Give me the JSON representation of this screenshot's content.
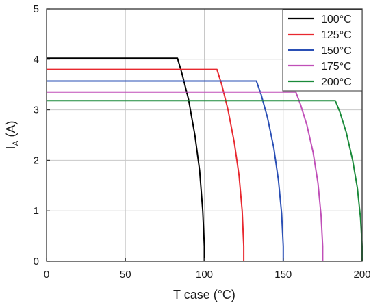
{
  "chart_data": {
    "type": "line",
    "title": "",
    "xlabel": "T case (°C)",
    "ylabel": {
      "main": "I",
      "sub": "A",
      "suffix": " (A)"
    },
    "xlim": [
      0,
      200
    ],
    "ylim": [
      0,
      5
    ],
    "x_ticks": [
      "0",
      "50",
      "100",
      "150",
      "200"
    ],
    "y_ticks": [
      "0",
      "1",
      "2",
      "3",
      "4",
      "5"
    ],
    "grid": true,
    "legend_position": "top-right",
    "series": [
      {
        "name": "100°C",
        "color": "#000000",
        "x": [
          0,
          83,
          86,
          90,
          94,
          97,
          99,
          100,
          100
        ],
        "y": [
          4.02,
          4.02,
          3.7,
          3.2,
          2.5,
          1.8,
          1.0,
          0.3,
          0
        ]
      },
      {
        "name": "125°C",
        "color": "#e8282f",
        "x": [
          0,
          108,
          111,
          115,
          119,
          122,
          124,
          125,
          125
        ],
        "y": [
          3.8,
          3.8,
          3.5,
          3.0,
          2.35,
          1.7,
          1.0,
          0.3,
          0
        ]
      },
      {
        "name": "150°C",
        "color": "#2a4fb5",
        "x": [
          0,
          133,
          136,
          140,
          144,
          147,
          149,
          150,
          150
        ],
        "y": [
          3.57,
          3.57,
          3.3,
          2.85,
          2.25,
          1.6,
          0.95,
          0.3,
          0
        ]
      },
      {
        "name": "175°C",
        "color": "#c04fb8",
        "x": [
          0,
          158,
          161,
          165,
          169,
          172,
          174,
          175,
          175
        ],
        "y": [
          3.35,
          3.35,
          3.1,
          2.7,
          2.15,
          1.55,
          0.9,
          0.3,
          0
        ]
      },
      {
        "name": "200°C",
        "color": "#1a8a3a",
        "x": [
          0,
          183,
          186,
          190,
          194,
          197,
          199,
          200,
          200
        ],
        "y": [
          3.18,
          3.18,
          2.95,
          2.55,
          2.0,
          1.45,
          0.85,
          0.3,
          0
        ]
      }
    ]
  }
}
